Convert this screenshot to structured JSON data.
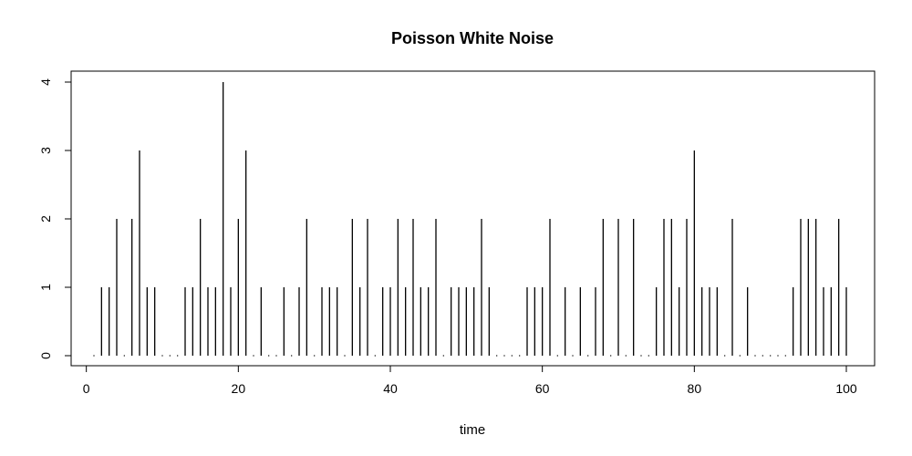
{
  "chart_data": {
    "type": "bar",
    "style": "vertical spikes (type='h')",
    "title": "Poisson White Noise",
    "xlabel": "time",
    "ylabel": "",
    "xlim": [
      1,
      100
    ],
    "ylim": [
      0,
      4
    ],
    "xticks": [
      0,
      20,
      40,
      60,
      80,
      100
    ],
    "yticks": [
      0,
      1,
      2,
      3,
      4
    ],
    "grid": false,
    "legend": "none",
    "x": [
      1,
      2,
      3,
      4,
      5,
      6,
      7,
      8,
      9,
      10,
      11,
      12,
      13,
      14,
      15,
      16,
      17,
      18,
      19,
      20,
      21,
      22,
      23,
      24,
      25,
      26,
      27,
      28,
      29,
      30,
      31,
      32,
      33,
      34,
      35,
      36,
      37,
      38,
      39,
      40,
      41,
      42,
      43,
      44,
      45,
      46,
      47,
      48,
      49,
      50,
      51,
      52,
      53,
      54,
      55,
      56,
      57,
      58,
      59,
      60,
      61,
      62,
      63,
      64,
      65,
      66,
      67,
      68,
      69,
      70,
      71,
      72,
      73,
      74,
      75,
      76,
      77,
      78,
      79,
      80,
      81,
      82,
      83,
      84,
      85,
      86,
      87,
      88,
      89,
      90,
      91,
      92,
      93,
      94,
      95,
      96,
      97,
      98,
      99,
      100
    ],
    "values": [
      0,
      1,
      1,
      2,
      0,
      2,
      3,
      1,
      1,
      0,
      0,
      0,
      1,
      1,
      2,
      1,
      1,
      4,
      1,
      2,
      3,
      0,
      1,
      0,
      0,
      1,
      0,
      1,
      2,
      0,
      1,
      1,
      1,
      0,
      2,
      1,
      2,
      0,
      1,
      1,
      2,
      1,
      2,
      1,
      1,
      2,
      0,
      1,
      1,
      1,
      1,
      2,
      1,
      0,
      0,
      0,
      0,
      1,
      1,
      1,
      2,
      0,
      1,
      0,
      1,
      0,
      1,
      2,
      0,
      2,
      0,
      2,
      0,
      0,
      1,
      2,
      2,
      1,
      2,
      3,
      1,
      1,
      1,
      0,
      2,
      0,
      1,
      0,
      0,
      0,
      0,
      0,
      1,
      2,
      2,
      2,
      1,
      1,
      2,
      1
    ]
  }
}
